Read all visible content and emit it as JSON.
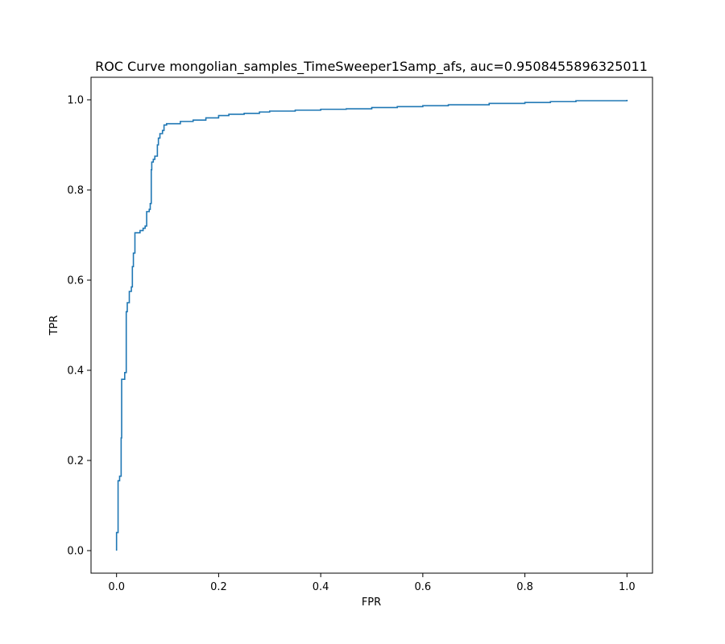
{
  "chart_data": {
    "type": "line",
    "title": "ROC Curve mongolian_samples_TimeSweeper1Samp_afs, auc=0.9508455896325011",
    "xlabel": "FPR",
    "ylabel": "TPR",
    "xlim": [
      -0.05,
      1.05
    ],
    "ylim": [
      -0.05,
      1.05
    ],
    "grid": false,
    "line_color": "#1f77b4",
    "x_ticks": [
      {
        "value": 0.0,
        "label": "0.0"
      },
      {
        "value": 0.2,
        "label": "0.2"
      },
      {
        "value": 0.4,
        "label": "0.4"
      },
      {
        "value": 0.6,
        "label": "0.6"
      },
      {
        "value": 0.8,
        "label": "0.8"
      },
      {
        "value": 1.0,
        "label": "1.0"
      }
    ],
    "y_ticks": [
      {
        "value": 0.0,
        "label": "0.0"
      },
      {
        "value": 0.2,
        "label": "0.2"
      },
      {
        "value": 0.4,
        "label": "0.4"
      },
      {
        "value": 0.6,
        "label": "0.6"
      },
      {
        "value": 0.8,
        "label": "0.8"
      },
      {
        "value": 1.0,
        "label": "1.0"
      }
    ],
    "series": [
      {
        "name": "ROC",
        "points": [
          [
            0.0,
            0.0
          ],
          [
            0.0,
            0.04
          ],
          [
            0.003,
            0.04
          ],
          [
            0.003,
            0.155
          ],
          [
            0.006,
            0.155
          ],
          [
            0.006,
            0.165
          ],
          [
            0.009,
            0.165
          ],
          [
            0.009,
            0.25
          ],
          [
            0.01,
            0.25
          ],
          [
            0.01,
            0.38
          ],
          [
            0.016,
            0.38
          ],
          [
            0.016,
            0.395
          ],
          [
            0.019,
            0.395
          ],
          [
            0.019,
            0.53
          ],
          [
            0.021,
            0.53
          ],
          [
            0.021,
            0.55
          ],
          [
            0.025,
            0.55
          ],
          [
            0.025,
            0.575
          ],
          [
            0.029,
            0.575
          ],
          [
            0.029,
            0.585
          ],
          [
            0.031,
            0.585
          ],
          [
            0.031,
            0.63
          ],
          [
            0.033,
            0.63
          ],
          [
            0.033,
            0.66
          ],
          [
            0.036,
            0.66
          ],
          [
            0.036,
            0.705
          ],
          [
            0.046,
            0.705
          ],
          [
            0.046,
            0.71
          ],
          [
            0.052,
            0.71
          ],
          [
            0.052,
            0.715
          ],
          [
            0.056,
            0.715
          ],
          [
            0.056,
            0.72
          ],
          [
            0.059,
            0.72
          ],
          [
            0.059,
            0.752
          ],
          [
            0.064,
            0.752
          ],
          [
            0.064,
            0.757
          ],
          [
            0.066,
            0.757
          ],
          [
            0.066,
            0.77
          ],
          [
            0.068,
            0.77
          ],
          [
            0.068,
            0.845
          ],
          [
            0.069,
            0.845
          ],
          [
            0.069,
            0.862
          ],
          [
            0.072,
            0.862
          ],
          [
            0.072,
            0.868
          ],
          [
            0.075,
            0.868
          ],
          [
            0.075,
            0.875
          ],
          [
            0.08,
            0.875
          ],
          [
            0.08,
            0.9
          ],
          [
            0.082,
            0.9
          ],
          [
            0.082,
            0.915
          ],
          [
            0.085,
            0.915
          ],
          [
            0.085,
            0.925
          ],
          [
            0.09,
            0.925
          ],
          [
            0.09,
            0.932
          ],
          [
            0.093,
            0.932
          ],
          [
            0.093,
            0.944
          ],
          [
            0.098,
            0.944
          ],
          [
            0.098,
            0.947
          ],
          [
            0.125,
            0.947
          ],
          [
            0.125,
            0.952
          ],
          [
            0.15,
            0.952
          ],
          [
            0.15,
            0.955
          ],
          [
            0.175,
            0.955
          ],
          [
            0.175,
            0.96
          ],
          [
            0.2,
            0.96
          ],
          [
            0.2,
            0.965
          ],
          [
            0.22,
            0.965
          ],
          [
            0.22,
            0.968
          ],
          [
            0.25,
            0.968
          ],
          [
            0.25,
            0.97
          ],
          [
            0.28,
            0.97
          ],
          [
            0.28,
            0.973
          ],
          [
            0.3,
            0.973
          ],
          [
            0.3,
            0.975
          ],
          [
            0.35,
            0.975
          ],
          [
            0.35,
            0.977
          ],
          [
            0.4,
            0.977
          ],
          [
            0.4,
            0.979
          ],
          [
            0.45,
            0.979
          ],
          [
            0.45,
            0.98
          ],
          [
            0.5,
            0.98
          ],
          [
            0.5,
            0.983
          ],
          [
            0.55,
            0.983
          ],
          [
            0.55,
            0.985
          ],
          [
            0.6,
            0.985
          ],
          [
            0.6,
            0.987
          ],
          [
            0.65,
            0.987
          ],
          [
            0.65,
            0.989
          ],
          [
            0.73,
            0.989
          ],
          [
            0.73,
            0.992
          ],
          [
            0.8,
            0.992
          ],
          [
            0.8,
            0.994
          ],
          [
            0.85,
            0.994
          ],
          [
            0.85,
            0.996
          ],
          [
            0.9,
            0.996
          ],
          [
            0.9,
            0.998
          ],
          [
            1.0,
            0.998
          ],
          [
            1.0,
            1.0
          ]
        ]
      }
    ]
  }
}
